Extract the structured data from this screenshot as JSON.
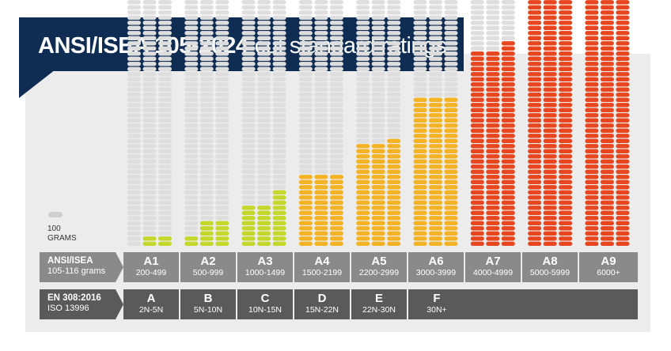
{
  "title": {
    "bold": "ANSI/ISEA 105-2024",
    "light": "cut standard ratings"
  },
  "legend": {
    "label_line1": "100",
    "label_line2": "GRAMS"
  },
  "row_labels": {
    "ansi": {
      "line1": "ANSI/ISEA",
      "line2": "105-116 grams"
    },
    "en": {
      "line1": "EN 308:2016",
      "line2": "ISO 13996"
    }
  },
  "ansi_levels": [
    {
      "level": "A1",
      "range": "200-499"
    },
    {
      "level": "A2",
      "range": "500-999"
    },
    {
      "level": "A3",
      "range": "1000-1499"
    },
    {
      "level": "A4",
      "range": "1500-2199"
    },
    {
      "level": "A5",
      "range": "2200-2999"
    },
    {
      "level": "A6",
      "range": "3000-3999"
    },
    {
      "level": "A7",
      "range": "4000-4999"
    },
    {
      "level": "A8",
      "range": "5000-5999"
    },
    {
      "level": "A9",
      "range": "6000+"
    }
  ],
  "en_levels": [
    {
      "level": "A",
      "range": "2N-5N"
    },
    {
      "level": "B",
      "range": "5N-10N"
    },
    {
      "level": "C",
      "range": "10N-15N"
    },
    {
      "level": "D",
      "range": "15N-22N"
    },
    {
      "level": "E",
      "range": "22N-30N"
    },
    {
      "level": "F",
      "range": "30N+"
    }
  ],
  "chart_data": {
    "type": "bar",
    "unit": "grams",
    "pill_unit_grams": 100,
    "max_grams": 6000,
    "categories": [
      "A1",
      "A2",
      "A3",
      "A4",
      "A5",
      "A6",
      "A7",
      "A8",
      "A9"
    ],
    "series": [
      {
        "values": [
          [
            0,
            200,
            200
          ],
          [
            200,
            500,
            500
          ],
          [
            800,
            800,
            1100
          ],
          [
            1400,
            1400,
            1400
          ],
          [
            2000,
            2000,
            2100
          ],
          [
            2900,
            2900,
            2900
          ],
          [
            3800,
            3800,
            4000
          ],
          [
            4800,
            5100,
            5100
          ],
          [
            6000,
            6000,
            6000
          ]
        ]
      }
    ],
    "colors": {
      "empty": "#dedede",
      "low": "#c4d82c",
      "mid": "#f4b324",
      "high": "#e8461e"
    }
  }
}
